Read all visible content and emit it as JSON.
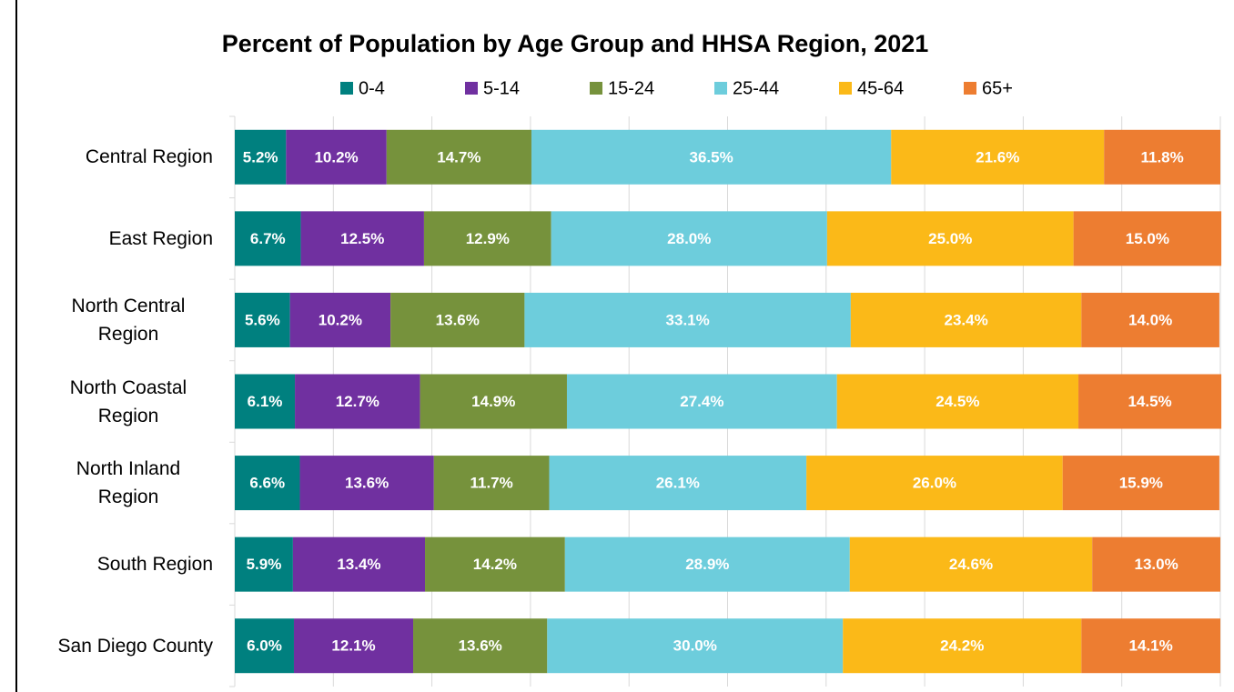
{
  "chart_data": {
    "type": "stacked-bar-horizontal",
    "title": "Percent of Population by Age Group and HHSA Region, 2021",
    "categories": [
      "Central Region",
      "East Region",
      "North Central Region",
      "North Coastal Region",
      "North Inland Region",
      "South Region",
      "San Diego County"
    ],
    "series": [
      {
        "name": "0-4",
        "color": "#00807f",
        "values": [
          5.2,
          6.7,
          5.6,
          6.1,
          6.6,
          5.9,
          6.0
        ],
        "value_labels": [
          "5.2%",
          "6.7%",
          "5.6%",
          "6.1%",
          "6.6%",
          "5.9%",
          "6.0%"
        ]
      },
      {
        "name": "5-14",
        "color": "#7030a0",
        "values": [
          10.2,
          12.5,
          10.2,
          12.7,
          13.6,
          13.4,
          12.1
        ],
        "value_labels": [
          "10.2%",
          "12.5%",
          "10.2%",
          "12.7%",
          "13.6%",
          "13.4%",
          "12.1%"
        ]
      },
      {
        "name": "15-24",
        "color": "#76923c",
        "values": [
          14.7,
          12.9,
          13.6,
          14.9,
          11.7,
          14.2,
          13.6
        ],
        "value_labels": [
          "14.7%",
          "12.9%",
          "13.6%",
          "14.9%",
          "11.7%",
          "14.2%",
          "13.6%"
        ]
      },
      {
        "name": "25-44",
        "color": "#6dcddc",
        "values": [
          36.5,
          28.0,
          33.1,
          27.4,
          26.1,
          28.9,
          30.0
        ],
        "value_labels": [
          "36.5%",
          "28.0%",
          "33.1%",
          "27.4%",
          "26.1%",
          "28.9%",
          "30.0%"
        ]
      },
      {
        "name": "45-64",
        "color": "#fbb918",
        "values": [
          21.6,
          25.0,
          23.4,
          24.5,
          26.0,
          24.6,
          24.2
        ],
        "value_labels": [
          "21.6%",
          "25.0%",
          "23.4%",
          "24.5%",
          "26.0%",
          "24.6%",
          "24.2%"
        ]
      },
      {
        "name": "65+",
        "color": "#ed7d31",
        "values": [
          11.8,
          15.0,
          14.0,
          14.5,
          15.9,
          13.0,
          14.1
        ],
        "value_labels": [
          "11.8%",
          "15.0%",
          "14.0%",
          "14.5%",
          "15.9%",
          "13.0%",
          "14.1%"
        ]
      }
    ],
    "xlim": [
      0,
      100
    ],
    "xticks": [
      0,
      10,
      20,
      30,
      40,
      50,
      60,
      70,
      80,
      90,
      100
    ],
    "grid": true,
    "legend": "top"
  }
}
